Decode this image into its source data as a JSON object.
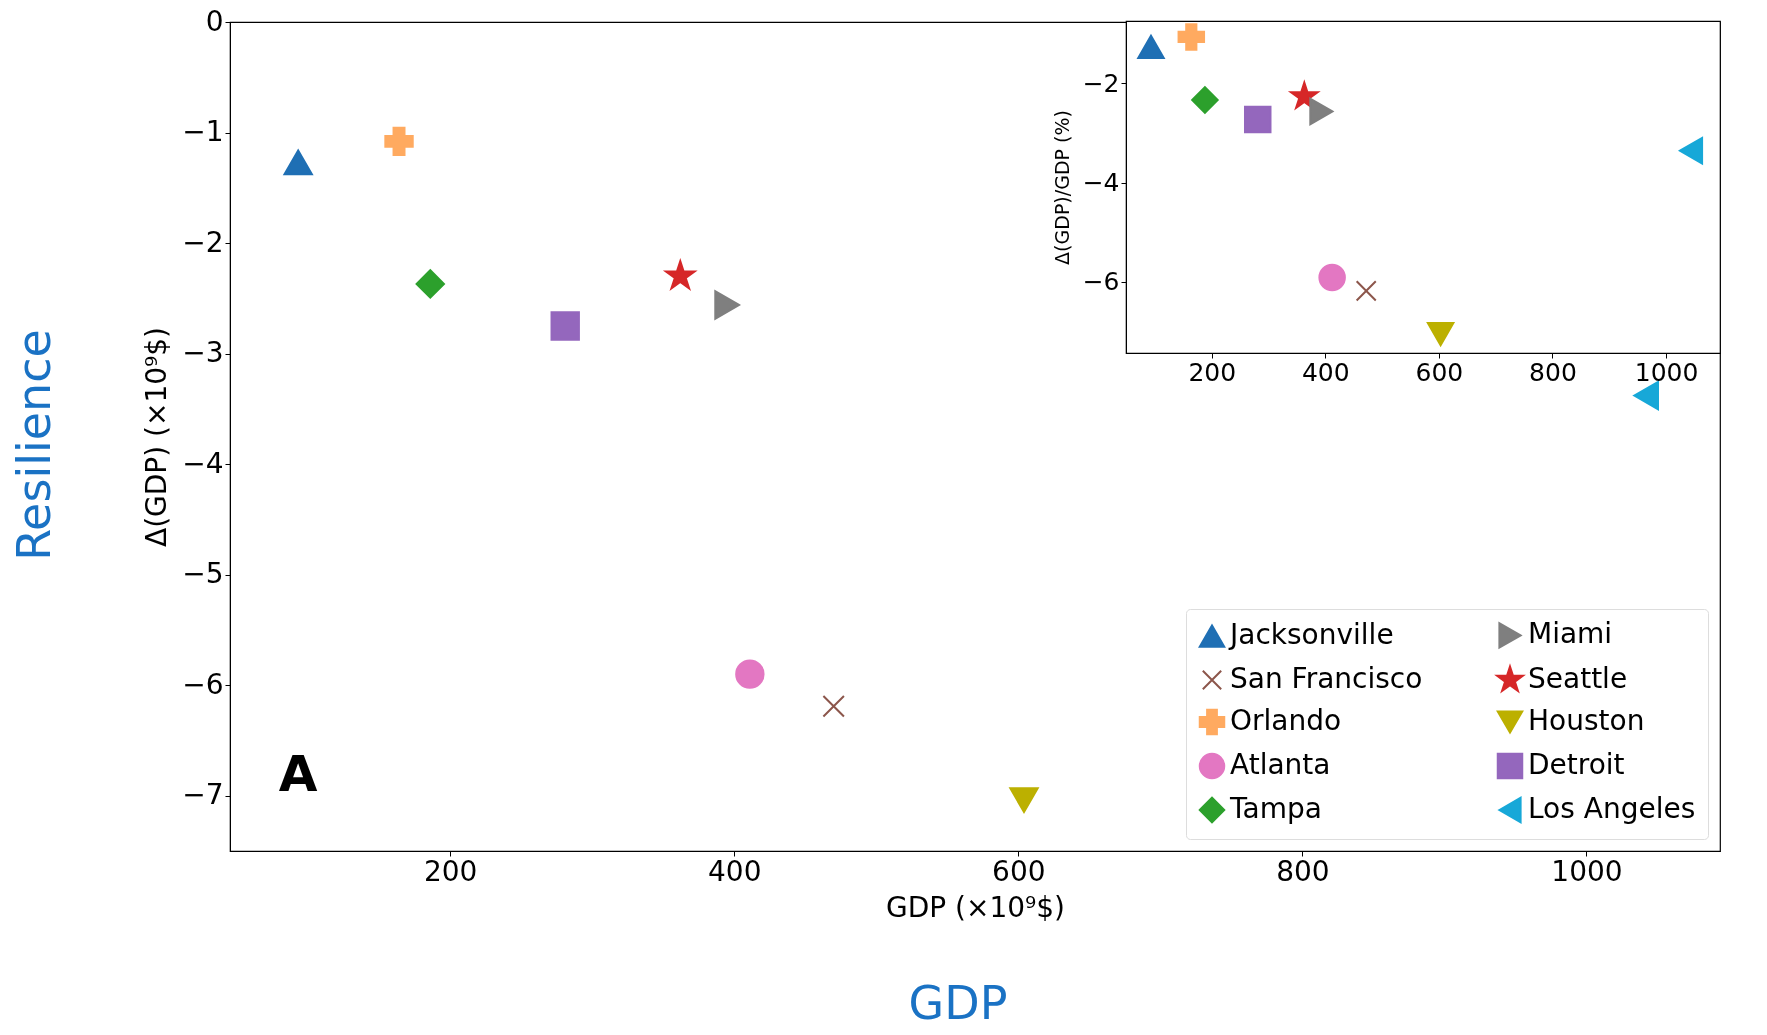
{
  "chart_data": [
    {
      "type": "scatter",
      "xlabel": "GDP (×10⁹$)",
      "ylabel": "Δ(GDP) (×10⁹$)",
      "xlim": [
        45,
        1094
      ],
      "ylim": [
        -7.5,
        0
      ],
      "xticks": [
        200,
        400,
        600,
        800,
        1000
      ],
      "yticks": [
        0,
        -1,
        -2,
        -3,
        -4,
        -5,
        -6,
        -7
      ],
      "legend": "bottom right",
      "annotations": [
        "A",
        "Resilience",
        "GDP"
      ],
      "series": [
        {
          "name": "Jacksonville",
          "color": "#1f6fb4",
          "marker": "triangle-up",
          "x": [
            93
          ],
          "values": [
            -1.27
          ]
        },
        {
          "name": "Orlando",
          "color": "#ffaa60",
          "marker": "cross",
          "x": [
            164
          ],
          "values": [
            -1.08
          ]
        },
        {
          "name": "Tampa",
          "color": "#2ca02c",
          "marker": "diamond",
          "x": [
            186
          ],
          "values": [
            -2.37
          ]
        },
        {
          "name": "Seattle",
          "color": "#d62728",
          "marker": "star",
          "x": [
            362
          ],
          "values": [
            -2.3
          ]
        },
        {
          "name": "Detroit",
          "color": "#9467bd",
          "marker": "square",
          "x": [
            281
          ],
          "values": [
            -2.75
          ]
        },
        {
          "name": "San Francisco",
          "color": "#8c564b",
          "marker": "x",
          "x": [
            470
          ],
          "values": [
            -6.19
          ]
        },
        {
          "name": "Atlanta",
          "color": "#e377c2",
          "marker": "circle",
          "x": [
            411
          ],
          "values": [
            -5.9
          ]
        },
        {
          "name": "Miami",
          "color": "#7f7f7f",
          "marker": "triangle-right",
          "x": [
            395
          ],
          "values": [
            -2.56
          ]
        },
        {
          "name": "Houston",
          "color": "#bcb000",
          "marker": "triangle-down",
          "x": [
            604
          ],
          "values": [
            -7.04
          ]
        },
        {
          "name": "Los Angeles",
          "color": "#17a8d8",
          "marker": "triangle-left",
          "x": [
            1042
          ],
          "values": [
            -3.38
          ]
        }
      ]
    },
    {
      "type": "scatter",
      "ylabel": "Δ(GDP)/GDP (%)",
      "xlim": [
        49,
        1095
      ],
      "ylim": [
        -7.43,
        -0.75
      ],
      "xticks": [
        200,
        400,
        600,
        800,
        1000
      ],
      "yticks": [
        -2,
        -4,
        -6
      ],
      "series": [
        {
          "color": "#1f6fb4",
          "marker": "triangle-up",
          "x": [
            93
          ],
          "values": [
            -1.27
          ]
        },
        {
          "color": "#ffaa60",
          "marker": "cross",
          "x": [
            164
          ],
          "values": [
            -1.07
          ]
        },
        {
          "color": "#2ca02c",
          "marker": "diamond",
          "x": [
            188
          ],
          "values": [
            -2.34
          ]
        },
        {
          "color": "#d62728",
          "marker": "star",
          "x": [
            363
          ],
          "values": [
            -2.27
          ]
        },
        {
          "color": "#9467bd",
          "marker": "square",
          "x": [
            281
          ],
          "values": [
            -2.73
          ]
        },
        {
          "color": "#8c564b",
          "marker": "x",
          "x": [
            472
          ],
          "values": [
            -6.18
          ]
        },
        {
          "color": "#e377c2",
          "marker": "circle",
          "x": [
            412
          ],
          "values": [
            -5.91
          ]
        },
        {
          "color": "#7f7f7f",
          "marker": "triangle-right",
          "x": [
            393
          ],
          "values": [
            -2.57
          ]
        },
        {
          "color": "#bcb000",
          "marker": "triangle-down",
          "x": [
            603
          ],
          "values": [
            -7.05
          ]
        },
        {
          "color": "#17a8d8",
          "marker": "triangle-left",
          "x": [
            1044
          ],
          "values": [
            -3.36
          ]
        }
      ]
    }
  ]
}
